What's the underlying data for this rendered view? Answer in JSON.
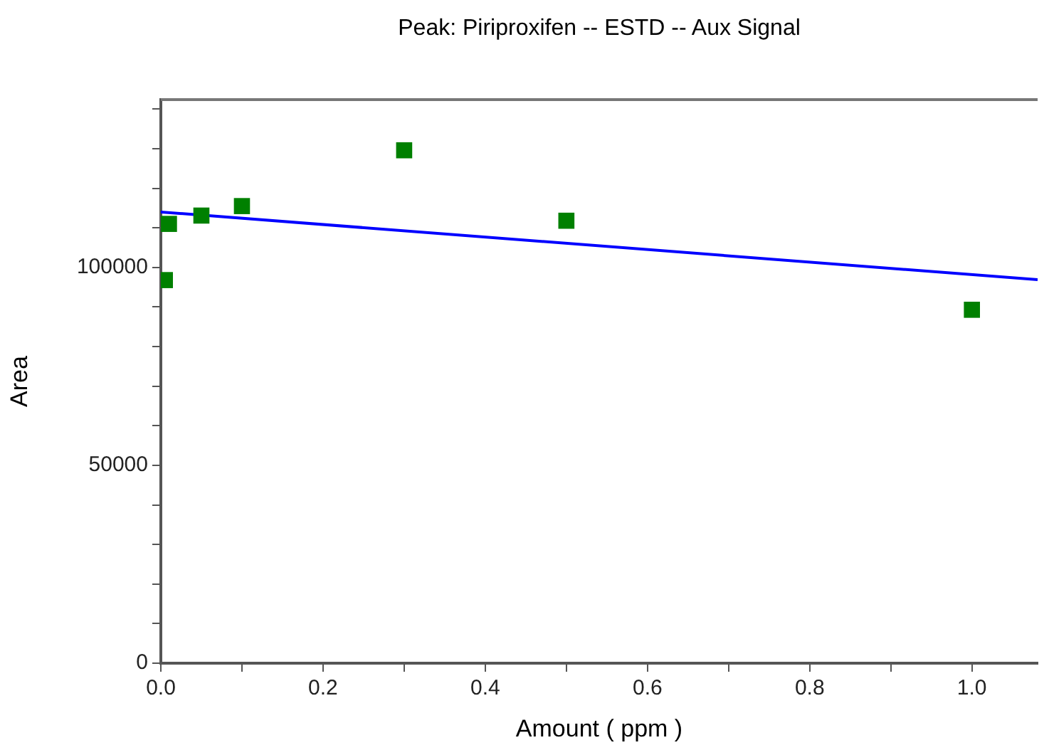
{
  "chart_data": {
    "type": "scatter",
    "title": "Peak: Piriproxifen -- ESTD -- Aux Signal",
    "xlabel": "Amount ( ppm )",
    "ylabel": "Area",
    "xlim": [
      0,
      1.081
    ],
    "ylim": [
      0,
      142400
    ],
    "xticks": [
      {
        "value": 0,
        "label": "0.0"
      },
      {
        "value": 0.1,
        "label": null
      },
      0.2,
      {
        "value": 0.3,
        "label": null
      },
      0.4,
      {
        "value": 0.5,
        "label": null
      },
      0.6,
      {
        "value": 0.7,
        "label": null
      },
      0.8,
      {
        "value": 0.9,
        "label": null
      },
      {
        "value": 1,
        "label": "1.0"
      }
    ],
    "yticks": [
      0,
      {
        "value": 10000,
        "label": null
      },
      {
        "value": 20000,
        "label": null
      },
      {
        "value": 30000,
        "label": null
      },
      {
        "value": 40000,
        "label": null
      },
      50000,
      {
        "value": 60000,
        "label": null
      },
      {
        "value": 70000,
        "label": null
      },
      {
        "value": 80000,
        "label": null
      },
      {
        "value": 90000,
        "label": null
      },
      100000,
      {
        "value": 110000,
        "label": null
      },
      {
        "value": 120000,
        "label": null
      },
      {
        "value": 130000,
        "label": null
      },
      {
        "value": 140000,
        "label": null
      }
    ],
    "grid": false,
    "legend": false,
    "series": [
      {
        "type": "scatter",
        "marker": "square",
        "color": "#008000",
        "x": [
          0.005,
          0.01,
          0.05,
          0.1,
          0.3,
          0.5,
          1.0
        ],
        "values": [
          96800,
          111000,
          113100,
          115500,
          129600,
          111800,
          89300
        ]
      },
      {
        "type": "line",
        "marker": "none",
        "line_style": "solid",
        "color": "#0000ff",
        "x": [
          0,
          1.081
        ],
        "values": [
          114000,
          96900
        ]
      }
    ]
  }
}
